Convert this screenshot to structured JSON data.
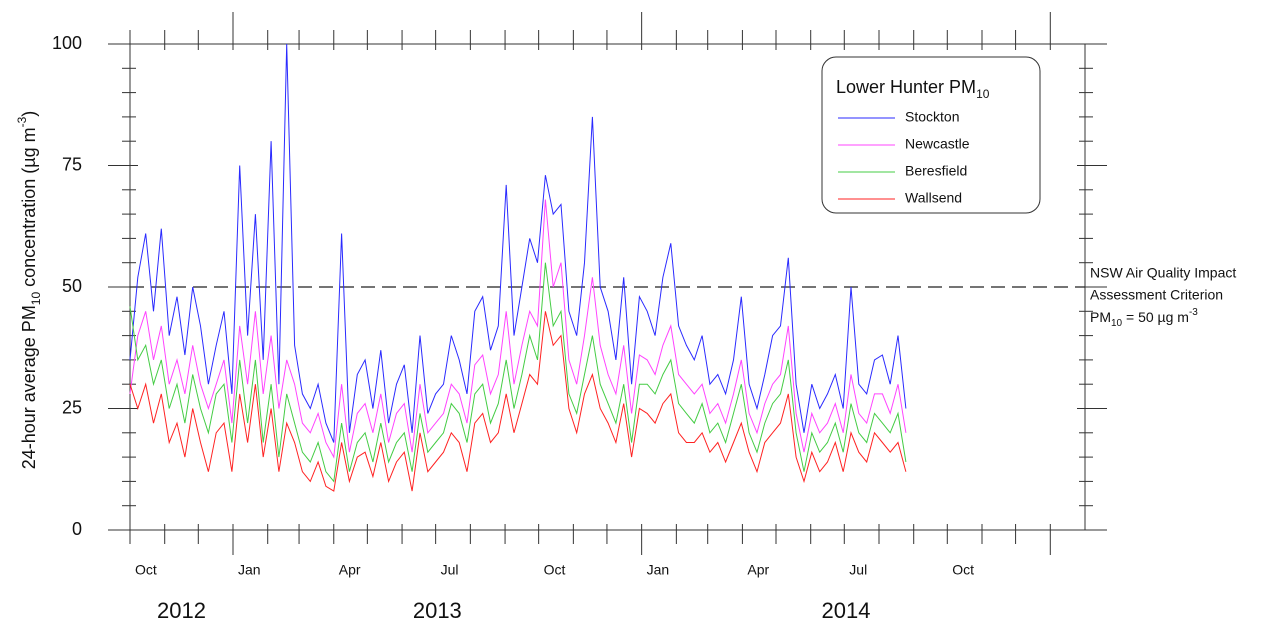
{
  "chart_data": {
    "type": "line",
    "ylabel": [
      "24-hour average PM",
      "10",
      " concentration (µg m",
      "-3",
      ")"
    ],
    "legend_title": [
      "Lower Hunter PM",
      "10"
    ],
    "legend": "upper right",
    "criterion": 50,
    "criterion_label": [
      "NSW Air Quality Impact",
      "Assessment Criterion",
      "PM",
      "10",
      " = 50 µg m",
      "-3"
    ],
    "xlim": [
      "2012-10",
      "2015-02"
    ],
    "xticks": [
      {
        "value": "2012-10",
        "label": "Oct"
      },
      {
        "value": "2013-01",
        "label": "Jan"
      },
      {
        "value": "2013-04",
        "label": "Apr"
      },
      {
        "value": "2013-07",
        "label": "Jul"
      },
      {
        "value": "2013-10",
        "label": "Oct"
      },
      {
        "value": "2014-01",
        "label": "Jan"
      },
      {
        "value": "2014-04",
        "label": "Apr"
      },
      {
        "value": "2014-07",
        "label": "Jul"
      },
      {
        "value": "2014-10",
        "label": "Oct"
      }
    ],
    "xminorticks": [
      "2012-10",
      "2012-11",
      "2012-12",
      "2013-01",
      "2013-02",
      "2013-03",
      "2013-04",
      "2013-05",
      "2013-06",
      "2013-07",
      "2013-08",
      "2013-09",
      "2013-10",
      "2013-11",
      "2013-12",
      "2014-01",
      "2014-02",
      "2014-03",
      "2014-04",
      "2014-05",
      "2014-06",
      "2014-07",
      "2014-08",
      "2014-09",
      "2014-10",
      "2014-11",
      "2014-12",
      "2015-01"
    ],
    "year_labels": [
      "2012",
      "2013",
      "2014"
    ],
    "ylim": [
      0,
      100
    ],
    "yticks": [
      0,
      25,
      50,
      75,
      100
    ],
    "yminorticks": [
      5,
      10,
      15,
      20,
      30,
      35,
      40,
      45,
      55,
      60,
      65,
      70,
      80,
      85,
      90,
      95
    ],
    "x": [
      "2012-10-01",
      "2012-10-08",
      "2012-10-15",
      "2012-10-22",
      "2012-10-29",
      "2012-11-05",
      "2012-11-12",
      "2012-11-19",
      "2012-11-26",
      "2012-12-03",
      "2012-12-10",
      "2012-12-17",
      "2012-12-24",
      "2012-12-31",
      "2013-01-07",
      "2013-01-14",
      "2013-01-21",
      "2013-01-28",
      "2013-02-04",
      "2013-02-11",
      "2013-02-18",
      "2013-02-25",
      "2013-03-04",
      "2013-03-11",
      "2013-03-18",
      "2013-03-25",
      "2013-04-01",
      "2013-04-08",
      "2013-04-15",
      "2013-04-22",
      "2013-04-29",
      "2013-05-06",
      "2013-05-13",
      "2013-05-20",
      "2013-05-27",
      "2013-06-03",
      "2013-06-10",
      "2013-06-17",
      "2013-06-24",
      "2013-07-01",
      "2013-07-08",
      "2013-07-15",
      "2013-07-22",
      "2013-07-29",
      "2013-08-05",
      "2013-08-12",
      "2013-08-19",
      "2013-08-26",
      "2013-09-02",
      "2013-09-09",
      "2013-09-16",
      "2013-09-23",
      "2013-09-30",
      "2013-10-07",
      "2013-10-14",
      "2013-10-21",
      "2013-10-28",
      "2013-11-04",
      "2013-11-11",
      "2013-11-18",
      "2013-11-25",
      "2013-12-02",
      "2013-12-09",
      "2013-12-16",
      "2013-12-23",
      "2013-12-30",
      "2014-01-06",
      "2014-01-13",
      "2014-01-20",
      "2014-01-27",
      "2014-02-03",
      "2014-02-10",
      "2014-02-17",
      "2014-02-24",
      "2014-03-03",
      "2014-03-10",
      "2014-03-17",
      "2014-03-24",
      "2014-03-31",
      "2014-04-07",
      "2014-04-14",
      "2014-04-21",
      "2014-04-28",
      "2014-05-05",
      "2014-05-12",
      "2014-05-19",
      "2014-05-26",
      "2014-06-02",
      "2014-06-09",
      "2014-06-16",
      "2014-06-23",
      "2014-06-30",
      "2014-07-07",
      "2014-07-14",
      "2014-07-21",
      "2014-07-28",
      "2014-08-04",
      "2014-08-11",
      "2014-08-18",
      "2014-08-25"
    ],
    "series": [
      {
        "name": "Stockton",
        "color": "#2a2aff",
        "values": [
          35,
          52,
          61,
          45,
          62,
          40,
          48,
          36,
          50,
          42,
          30,
          38,
          45,
          28,
          75,
          40,
          65,
          35,
          80,
          30,
          100,
          38,
          28,
          25,
          30,
          22,
          18,
          61,
          20,
          32,
          35,
          25,
          37,
          22,
          30,
          34,
          20,
          40,
          24,
          28,
          30,
          40,
          35,
          28,
          45,
          48,
          37,
          42,
          71,
          40,
          50,
          60,
          55,
          73,
          65,
          67,
          45,
          40,
          55,
          85,
          50,
          45,
          35,
          52,
          30,
          48,
          45,
          40,
          52,
          59,
          42,
          38,
          35,
          40,
          30,
          32,
          28,
          35,
          48,
          30,
          25,
          32,
          40,
          42,
          56,
          30,
          20,
          30,
          25,
          28,
          32,
          25,
          50,
          30,
          28,
          35,
          36,
          30,
          40,
          25
        ]
      },
      {
        "name": "Newcastle",
        "color": "#ff44ff",
        "values": [
          28,
          40,
          45,
          35,
          42,
          30,
          35,
          28,
          38,
          30,
          25,
          30,
          35,
          22,
          42,
          30,
          45,
          28,
          40,
          25,
          35,
          30,
          22,
          20,
          24,
          18,
          15,
          30,
          16,
          24,
          26,
          20,
          28,
          18,
          24,
          26,
          16,
          30,
          20,
          22,
          24,
          30,
          28,
          22,
          34,
          36,
          28,
          32,
          45,
          30,
          38,
          45,
          42,
          68,
          50,
          55,
          35,
          30,
          40,
          52,
          38,
          32,
          28,
          38,
          24,
          36,
          35,
          32,
          38,
          42,
          32,
          30,
          28,
          30,
          24,
          26,
          22,
          28,
          35,
          24,
          20,
          26,
          30,
          32,
          42,
          24,
          16,
          24,
          20,
          22,
          26,
          20,
          32,
          24,
          22,
          28,
          28,
          24,
          30,
          20
        ]
      },
      {
        "name": "Beresfield",
        "color": "#44cc44",
        "values": [
          46,
          35,
          38,
          30,
          35,
          25,
          30,
          22,
          32,
          25,
          20,
          28,
          30,
          18,
          35,
          22,
          35,
          18,
          30,
          15,
          28,
          22,
          16,
          14,
          18,
          12,
          10,
          22,
          12,
          18,
          20,
          14,
          22,
          14,
          18,
          20,
          12,
          24,
          16,
          18,
          20,
          26,
          24,
          18,
          28,
          30,
          22,
          26,
          35,
          25,
          32,
          40,
          35,
          55,
          42,
          45,
          28,
          24,
          32,
          40,
          30,
          26,
          22,
          30,
          18,
          30,
          30,
          28,
          32,
          35,
          26,
          24,
          22,
          26,
          20,
          22,
          18,
          24,
          30,
          20,
          16,
          22,
          26,
          28,
          35,
          20,
          12,
          20,
          16,
          18,
          22,
          16,
          26,
          20,
          18,
          24,
          22,
          20,
          24,
          14
        ]
      },
      {
        "name": "Wallsend",
        "color": "#ff2222",
        "values": [
          30,
          25,
          30,
          22,
          28,
          18,
          22,
          15,
          25,
          18,
          12,
          20,
          22,
          12,
          28,
          18,
          30,
          15,
          25,
          12,
          22,
          18,
          12,
          10,
          14,
          9,
          8,
          18,
          10,
          15,
          16,
          11,
          18,
          10,
          14,
          16,
          8,
          20,
          12,
          14,
          16,
          20,
          18,
          12,
          22,
          24,
          18,
          20,
          28,
          20,
          26,
          32,
          30,
          45,
          38,
          40,
          25,
          20,
          28,
          32,
          25,
          22,
          18,
          26,
          15,
          25,
          24,
          22,
          26,
          28,
          20,
          18,
          18,
          20,
          16,
          18,
          14,
          18,
          22,
          16,
          12,
          18,
          20,
          22,
          28,
          15,
          10,
          16,
          12,
          14,
          18,
          12,
          20,
          16,
          14,
          20,
          18,
          16,
          18,
          12
        ]
      }
    ]
  }
}
